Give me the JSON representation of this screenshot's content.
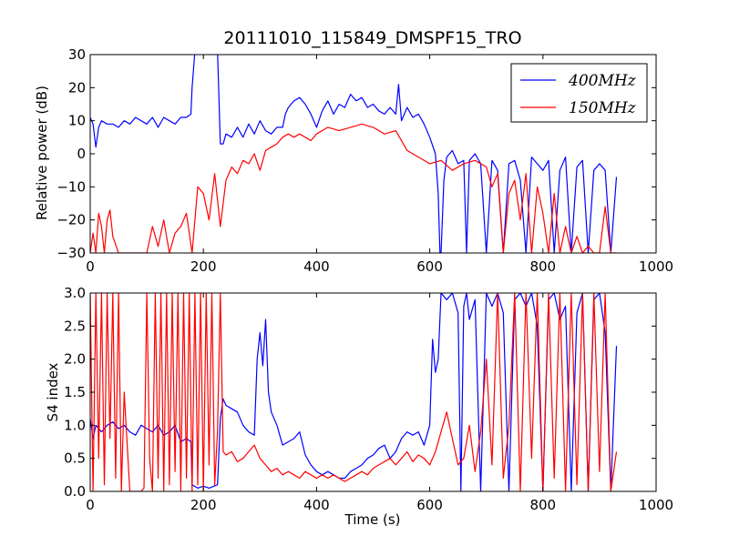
{
  "chart_data": [
    {
      "type": "line",
      "title": "20111010_115849_DMSPF15_TRO",
      "xlabel": "",
      "ylabel": "Relative power (dB)",
      "xlim": [
        0,
        1000
      ],
      "ylim": [
        -30,
        30
      ],
      "x_ticks": [
        "0",
        "200",
        "400",
        "600",
        "800",
        "1000"
      ],
      "y_ticks": [
        "−30",
        "−20",
        "−10",
        "0",
        "10",
        "20",
        "30"
      ],
      "legend": {
        "placement": "top-right"
      },
      "series": [
        {
          "name": "400MHz",
          "color": "#0000ff",
          "x": [
            0,
            5,
            10,
            15,
            20,
            30,
            40,
            50,
            60,
            70,
            80,
            90,
            100,
            110,
            120,
            130,
            140,
            150,
            160,
            170,
            178,
            180,
            185,
            190,
            200,
            210,
            225,
            230,
            235,
            240,
            250,
            260,
            270,
            280,
            290,
            300,
            310,
            320,
            330,
            340,
            345,
            350,
            360,
            370,
            380,
            390,
            400,
            410,
            420,
            430,
            440,
            450,
            460,
            470,
            480,
            490,
            500,
            510,
            520,
            530,
            540,
            545,
            550,
            560,
            570,
            580,
            590,
            600,
            610,
            615,
            618,
            620,
            625,
            630,
            640,
            650,
            660,
            665,
            670,
            680,
            690,
            700,
            710,
            720,
            730,
            740,
            750,
            760,
            770,
            780,
            790,
            800,
            810,
            820,
            830,
            840,
            850,
            860,
            870,
            880,
            890,
            900,
            910,
            920,
            930
          ],
          "values": [
            11,
            9,
            2,
            8,
            10,
            9,
            9,
            8,
            10,
            9,
            11,
            10,
            9,
            11,
            8,
            11,
            10,
            9,
            11,
            11,
            12,
            20,
            31,
            31,
            31,
            31,
            31,
            3,
            3,
            6,
            5,
            8,
            5,
            9,
            6,
            10,
            7,
            6,
            8,
            8,
            12,
            14,
            16,
            17,
            15,
            12,
            8,
            13,
            16,
            12,
            15,
            14,
            18,
            16,
            17,
            14,
            15,
            13,
            12,
            14,
            12,
            21,
            10,
            14,
            11,
            12,
            9,
            5,
            0,
            -12,
            -30,
            -30,
            -8,
            -1,
            1,
            -3,
            -2,
            -30,
            -2,
            0,
            -3,
            -30,
            -2,
            -5,
            -30,
            -3,
            -2,
            -8,
            -30,
            -1,
            -3,
            -5,
            -2,
            -30,
            -5,
            -1,
            -30,
            -4,
            -2,
            -30,
            -5,
            -3,
            -5,
            -30,
            -7
          ]
        },
        {
          "name": "150MHz",
          "color": "#ff0000",
          "x": [
            0,
            5,
            10,
            15,
            20,
            25,
            30,
            35,
            40,
            50,
            60,
            80,
            100,
            110,
            120,
            130,
            140,
            150,
            160,
            170,
            180,
            190,
            200,
            210,
            220,
            230,
            240,
            250,
            260,
            270,
            280,
            290,
            300,
            310,
            320,
            330,
            340,
            350,
            360,
            370,
            380,
            390,
            400,
            420,
            440,
            460,
            480,
            500,
            520,
            540,
            560,
            580,
            600,
            620,
            640,
            660,
            680,
            700,
            710,
            720,
            730,
            740,
            750,
            760,
            770,
            780,
            790,
            800,
            810,
            820,
            830,
            840,
            850,
            860,
            870,
            880,
            890,
            900,
            910,
            920,
            930
          ],
          "values": [
            -30,
            -24,
            -30,
            -18,
            -22,
            -30,
            -20,
            -17,
            -25,
            -30,
            -30,
            -30,
            -30,
            -22,
            -28,
            -20,
            -30,
            -24,
            -22,
            -18,
            -30,
            -10,
            -12,
            -20,
            -6,
            -22,
            -8,
            -4,
            -6,
            -2,
            -3,
            0,
            -5,
            1,
            2,
            3,
            5,
            6,
            5,
            6,
            5,
            4,
            6,
            8,
            7,
            8,
            9,
            8,
            6,
            7,
            1,
            -1,
            -3,
            -2,
            -5,
            -3,
            -2,
            -4,
            -10,
            -6,
            -30,
            -12,
            -8,
            -20,
            -6,
            -30,
            -10,
            -18,
            -30,
            -12,
            -30,
            -22,
            -30,
            -25,
            -30,
            -28,
            -30,
            -30,
            -16,
            -30,
            -30
          ]
        }
      ]
    },
    {
      "type": "line",
      "title": "",
      "xlabel": "Time (s)",
      "ylabel": "S4 index",
      "xlim": [
        0,
        1000
      ],
      "ylim": [
        0,
        3
      ],
      "x_ticks": [
        "0",
        "200",
        "400",
        "600",
        "800",
        "1000"
      ],
      "y_ticks": [
        "0.0",
        "0.5",
        "1.0",
        "1.5",
        "2.0",
        "2.5",
        "3.0"
      ],
      "series": [
        {
          "name": "400MHz",
          "color": "#0000ff",
          "x": [
            0,
            5,
            10,
            20,
            30,
            40,
            50,
            60,
            70,
            80,
            90,
            100,
            110,
            120,
            130,
            140,
            150,
            160,
            170,
            178,
            180,
            190,
            200,
            210,
            225,
            230,
            235,
            240,
            250,
            260,
            270,
            280,
            290,
            295,
            300,
            305,
            310,
            315,
            320,
            330,
            340,
            350,
            360,
            370,
            380,
            390,
            400,
            410,
            420,
            430,
            440,
            450,
            460,
            470,
            480,
            490,
            500,
            510,
            520,
            530,
            540,
            550,
            560,
            570,
            580,
            590,
            600,
            605,
            610,
            615,
            620,
            630,
            640,
            650,
            655,
            660,
            665,
            670,
            680,
            690,
            700,
            710,
            720,
            730,
            740,
            750,
            760,
            770,
            780,
            790,
            800,
            810,
            820,
            830,
            840,
            850,
            860,
            870,
            880,
            890,
            900,
            910,
            920,
            930
          ],
          "values": [
            1.1,
            0.8,
            1.0,
            0.9,
            1.0,
            1.05,
            0.95,
            1.0,
            0.9,
            0.85,
            1.0,
            0.95,
            0.9,
            1.0,
            0.85,
            0.9,
            1.0,
            0.75,
            0.8,
            0.75,
            0.1,
            0.05,
            0.08,
            0.05,
            0.1,
            1.1,
            1.4,
            1.3,
            1.25,
            1.2,
            1.0,
            0.9,
            0.85,
            2.0,
            2.4,
            1.9,
            2.6,
            1.5,
            1.2,
            1.0,
            0.7,
            0.75,
            0.8,
            0.9,
            0.55,
            0.4,
            0.3,
            0.25,
            0.3,
            0.25,
            0.2,
            0.2,
            0.3,
            0.35,
            0.4,
            0.5,
            0.55,
            0.65,
            0.7,
            0.5,
            0.6,
            0.8,
            0.9,
            0.85,
            0.9,
            0.7,
            1.0,
            2.3,
            1.8,
            2.0,
            3.0,
            2.9,
            3.0,
            2.7,
            0.0,
            2.8,
            3.0,
            2.6,
            2.9,
            0.0,
            3.0,
            2.8,
            3.0,
            2.7,
            0.0,
            2.9,
            3.0,
            2.8,
            3.0,
            2.5,
            0.0,
            2.9,
            3.0,
            2.6,
            2.8,
            0.0,
            2.7,
            3.0,
            0.0,
            2.9,
            3.0,
            2.4,
            0.0,
            2.2
          ]
        },
        {
          "name": "150MHz",
          "color": "#ff0000",
          "x": [
            0,
            5,
            10,
            15,
            20,
            25,
            30,
            35,
            40,
            45,
            50,
            55,
            60,
            70,
            80,
            90,
            95,
            100,
            105,
            110,
            115,
            120,
            125,
            130,
            135,
            140,
            145,
            150,
            155,
            160,
            165,
            170,
            175,
            180,
            185,
            190,
            195,
            200,
            205,
            210,
            215,
            220,
            225,
            230,
            235,
            240,
            250,
            260,
            270,
            280,
            290,
            300,
            310,
            320,
            330,
            340,
            350,
            360,
            370,
            380,
            390,
            400,
            410,
            420,
            430,
            440,
            450,
            460,
            470,
            480,
            490,
            500,
            510,
            520,
            530,
            540,
            550,
            560,
            570,
            580,
            590,
            600,
            610,
            620,
            630,
            640,
            650,
            660,
            670,
            680,
            690,
            700,
            710,
            720,
            730,
            740,
            750,
            760,
            770,
            780,
            790,
            800,
            810,
            820,
            830,
            840,
            850,
            860,
            870,
            880,
            890,
            900,
            910,
            920,
            930
          ],
          "values": [
            3.0,
            0.0,
            3.0,
            0.5,
            3.0,
            0.1,
            3.0,
            0.8,
            3.0,
            0.2,
            3.0,
            0.0,
            1.5,
            0.0,
            0.0,
            0.0,
            0.05,
            3.0,
            0.5,
            0.0,
            3.0,
            0.2,
            3.0,
            0.0,
            3.0,
            0.1,
            3.0,
            0.3,
            3.0,
            0.0,
            3.0,
            0.2,
            3.0,
            0.0,
            3.0,
            0.1,
            3.0,
            0.0,
            3.0,
            0.4,
            3.0,
            0.1,
            0.9,
            3.0,
            0.6,
            0.55,
            0.6,
            0.45,
            0.5,
            0.6,
            0.7,
            0.5,
            0.4,
            0.3,
            0.35,
            0.25,
            0.3,
            0.25,
            0.2,
            0.3,
            0.25,
            0.2,
            0.25,
            0.2,
            0.25,
            0.2,
            0.15,
            0.2,
            0.25,
            0.3,
            0.25,
            0.35,
            0.4,
            0.45,
            0.5,
            0.4,
            0.5,
            0.6,
            0.45,
            0.55,
            0.5,
            0.4,
            0.6,
            0.9,
            1.2,
            0.8,
            0.4,
            0.5,
            1.0,
            0.3,
            0.9,
            2.0,
            0.4,
            3.0,
            0.2,
            1.0,
            3.0,
            0.0,
            3.0,
            0.5,
            3.0,
            0.0,
            3.0,
            0.2,
            3.0,
            0.0,
            3.0,
            0.1,
            3.0,
            0.0,
            3.0,
            0.3,
            3.0,
            0.0,
            0.6
          ]
        }
      ]
    }
  ]
}
